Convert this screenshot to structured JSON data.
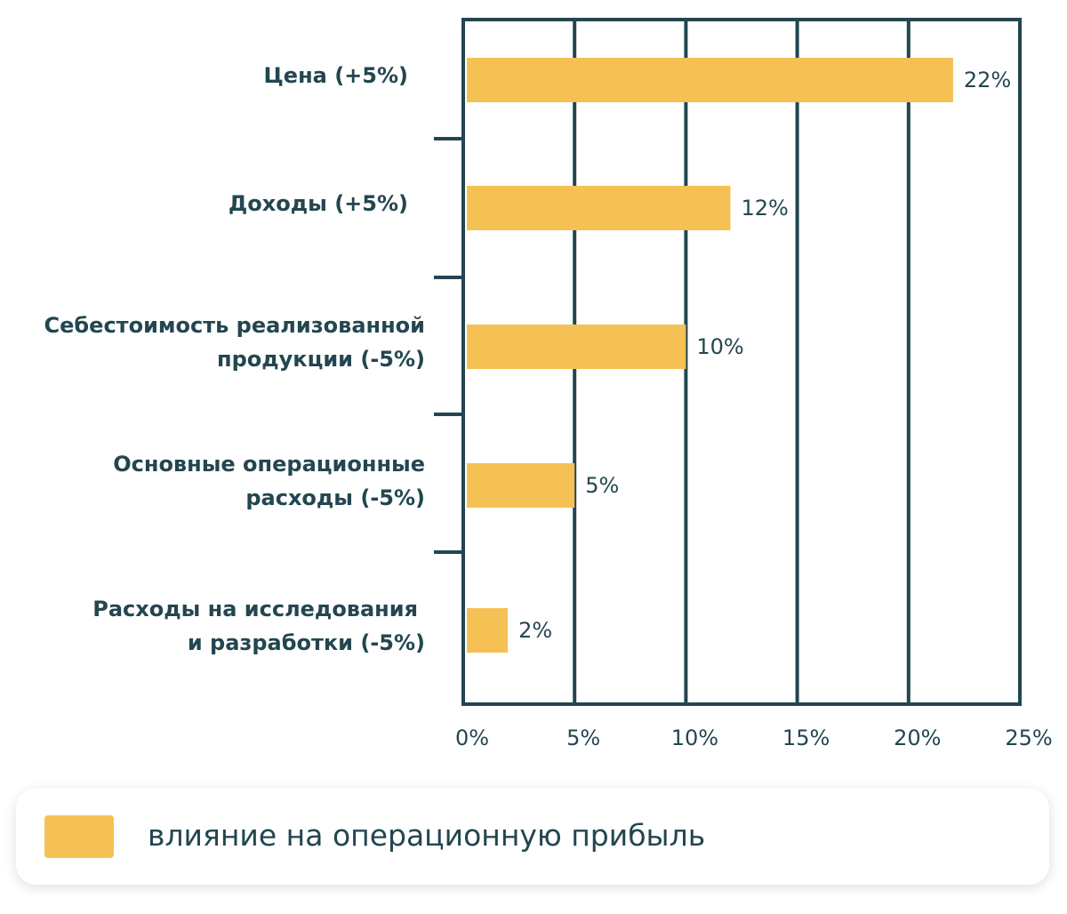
{
  "chart_data": {
    "type": "bar",
    "orientation": "horizontal",
    "categories": [
      [
        "Цена (+5%)"
      ],
      [
        "Доходы (+5%)"
      ],
      [
        "Себестоимость реализованной",
        "продукции (-5%)"
      ],
      [
        "Основные операционные",
        "расходы (-5%)"
      ],
      [
        "Расходы на исследования",
        "и разработки (-5%)"
      ]
    ],
    "series": [
      {
        "name": "влияние на операционную прибыль",
        "values": [
          22,
          12,
          10,
          5,
          2
        ],
        "value_labels": [
          "22%",
          "12%",
          "10%",
          "5%",
          "2%"
        ],
        "color": "#F5C155"
      }
    ],
    "xlim": [
      0,
      25
    ],
    "xticks": [
      0,
      5,
      10,
      15,
      20,
      25
    ],
    "xtick_labels": [
      "0%",
      "5%",
      "10%",
      "15%",
      "20%",
      "25%"
    ],
    "grid": true,
    "legend_position": "bottom",
    "title": "",
    "xlabel": "",
    "ylabel": ""
  },
  "colors": {
    "axis": "#234650",
    "bar": "#F5C155",
    "text": "#234650"
  },
  "legend": {
    "label": "влияние на операционную прибыль"
  }
}
